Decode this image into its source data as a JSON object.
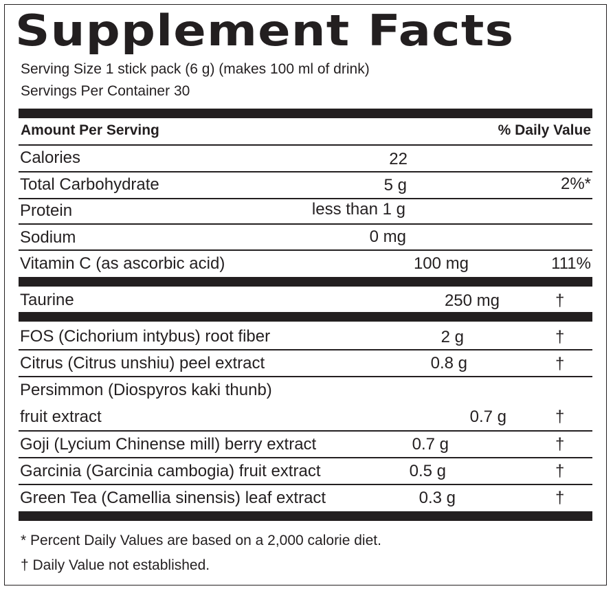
{
  "title": "Supplement Facts",
  "serving_size": "Serving Size 1 stick pack (6 g) (makes 100 ml of drink)",
  "servings_per_container": "Servings Per Container 30",
  "header": {
    "amount": "Amount Per Serving",
    "dv": "% Daily Value"
  },
  "rows": [
    {
      "name": "Calories",
      "amount": "22",
      "dv": ""
    },
    {
      "name": "Total Carbohydrate",
      "amount": "5 g",
      "dv": "2%*"
    },
    {
      "name": "Protein",
      "amount": "less than 1 g",
      "dv": ""
    },
    {
      "name": "Sodium",
      "amount": "0 mg",
      "dv": ""
    },
    {
      "name": "Vitamin C (as ascorbic acid)",
      "amount": "100 mg",
      "dv": "111%"
    },
    {
      "name": "Taurine",
      "amount": "250 mg",
      "dv": "†"
    },
    {
      "name": "FOS (Cichorium intybus) root fiber",
      "amount": "2 g",
      "dv": "†"
    },
    {
      "name": "Citrus (Citrus unshiu) peel extract",
      "amount": "0.8 g",
      "dv": "†"
    },
    {
      "name": "Persimmon (Diospyros kaki thunb)",
      "name2": "fruit extract",
      "amount": "0.7 g",
      "dv": "†"
    },
    {
      "name": "Goji (Lycium Chinense mill) berry extract",
      "amount": "0.7 g",
      "dv": "†"
    },
    {
      "name": "Garcinia (Garcinia cambogia) fruit extract",
      "amount": "0.5 g",
      "dv": "†"
    },
    {
      "name": "Green Tea (Camellia sinensis) leaf extract",
      "amount": "0.3 g",
      "dv": "†"
    }
  ],
  "footnotes": [
    "* Percent Daily Values are based on a 2,000 calorie diet.",
    "† Daily Value not established."
  ]
}
